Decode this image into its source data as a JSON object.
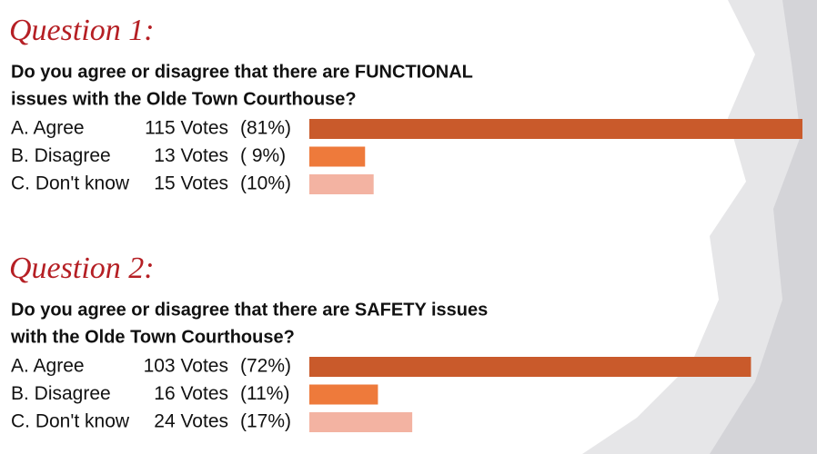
{
  "chart_data": [
    {
      "type": "bar",
      "title": "Question 1:",
      "question": [
        "Do you agree or disagree that there are FUNCTIONAL",
        "issues with the Olde Town Courthouse?"
      ],
      "categories": [
        "A. Agree",
        "B. Disagree",
        "C. Don't know"
      ],
      "values": [
        115,
        13,
        15
      ],
      "value_labels": [
        "115 Votes",
        "13 Votes",
        "15 Votes"
      ],
      "shares": [
        "(81%)",
        "( 9%)",
        "(10%)"
      ],
      "colors": [
        "#c95a2b",
        "#ee7a3b",
        "#f3b3a2"
      ]
    },
    {
      "type": "bar",
      "title": "Question 2:",
      "question": [
        "Do you agree or disagree that there are SAFETY issues",
        "with the Olde Town Courthouse?"
      ],
      "categories": [
        "A. Agree",
        "B. Disagree",
        "C. Don't know"
      ],
      "values": [
        103,
        16,
        24
      ],
      "value_labels": [
        "103 Votes",
        "16 Votes",
        "24 Votes"
      ],
      "shares": [
        "(72%)",
        "(11%)",
        "(17%)"
      ],
      "colors": [
        "#c95a2b",
        "#ee7a3b",
        "#f3b3a2"
      ]
    }
  ]
}
